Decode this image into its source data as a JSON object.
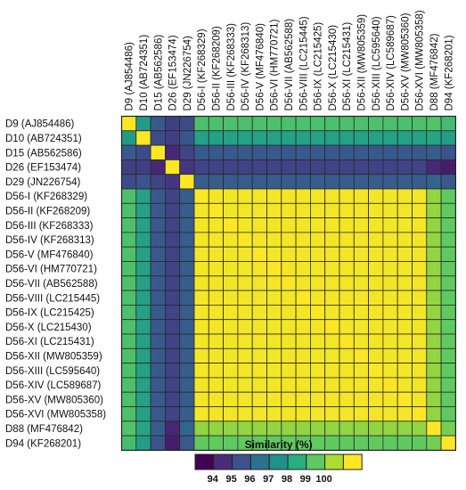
{
  "chart_data": {
    "type": "heatmap",
    "title": "",
    "labels": [
      "D9 (AJ854486)",
      "D10 (AB724351)",
      "D15 (AB562586)",
      "D26 (EF153474)",
      "D29 (JN226754)",
      "D56-I (KF268329)",
      "D56-II (KF268209)",
      "D56-III (KF268333)",
      "D56-IV (KF268313)",
      "D56-V (MF476840)",
      "D56-VI (HM770721)",
      "D56-VII (AB562588)",
      "D56-VIII (LC215445)",
      "D56-IX (LC215425)",
      "D56-X (LC215430)",
      "D56-XI (LC215431)",
      "D56-XII (MW805359)",
      "D56-XIII (LC595640)",
      "D56-XIV (LC589687)",
      "D56-XV (MW805360)",
      "D56-XVI (MW805358)",
      "D88 (MF476842)",
      "D94 (KF268201)"
    ],
    "legend": {
      "title": "Similarity (%)",
      "ticks": [
        "94",
        "95",
        "96",
        "97",
        "98",
        "99",
        "100"
      ],
      "range": [
        93.5,
        100
      ],
      "colors": [
        "#440154",
        "#472d7b",
        "#3b528b",
        "#2c728e",
        "#21918c",
        "#28ae80",
        "#5ec962",
        "#addc30",
        "#fde725"
      ]
    },
    "groups": {
      "D9": 0,
      "D10": 1,
      "D15": 2,
      "D26": 3,
      "D29": 4,
      "D56": [
        5,
        6,
        7,
        8,
        9,
        10,
        11,
        12,
        13,
        14,
        15,
        16,
        17,
        18,
        19,
        20
      ],
      "D88": 21,
      "D94": 22
    },
    "values": {
      "diagonal": 100,
      "pairs": [
        {
          "a": "D9",
          "b": "D10",
          "v": 97.0
        },
        {
          "a": "D9",
          "b": "D15",
          "v": 95.3
        },
        {
          "a": "D9",
          "b": "D26",
          "v": 94.7
        },
        {
          "a": "D9",
          "b": "D29",
          "v": 95.0
        },
        {
          "a": "D9",
          "b": "D56",
          "v": 98.1
        },
        {
          "a": "D9",
          "b": "D88",
          "v": 98.2
        },
        {
          "a": "D9",
          "b": "D94",
          "v": 98.0
        },
        {
          "a": "D10",
          "b": "D15",
          "v": 95.0
        },
        {
          "a": "D10",
          "b": "D26",
          "v": 94.7
        },
        {
          "a": "D10",
          "b": "D29",
          "v": 95.2
        },
        {
          "a": "D10",
          "b": "D56",
          "v": 97.2
        },
        {
          "a": "D10",
          "b": "D88",
          "v": 97.3
        },
        {
          "a": "D10",
          "b": "D94",
          "v": 97.1
        },
        {
          "a": "D15",
          "b": "D26",
          "v": 94.2
        },
        {
          "a": "D15",
          "b": "D29",
          "v": 94.8
        },
        {
          "a": "D15",
          "b": "D56",
          "v": 95.3
        },
        {
          "a": "D15",
          "b": "D88",
          "v": 95.4
        },
        {
          "a": "D15",
          "b": "D94",
          "v": 95.2
        },
        {
          "a": "D26",
          "b": "D29",
          "v": 94.5
        },
        {
          "a": "D26",
          "b": "D56",
          "v": 94.8
        },
        {
          "a": "D26",
          "b": "D88",
          "v": 94.2
        },
        {
          "a": "D26",
          "b": "D94",
          "v": 94.0
        },
        {
          "a": "D29",
          "b": "D56",
          "v": 95.4
        },
        {
          "a": "D29",
          "b": "D88",
          "v": 95.6
        },
        {
          "a": "D29",
          "b": "D94",
          "v": 95.3
        },
        {
          "a": "D56",
          "b": "D56",
          "v": 99.9
        },
        {
          "a": "D56",
          "b": "D88",
          "v": 98.9
        },
        {
          "a": "D56",
          "b": "D94",
          "v": 98.4
        },
        {
          "a": "D88",
          "b": "D94",
          "v": 98.6
        }
      ]
    }
  }
}
